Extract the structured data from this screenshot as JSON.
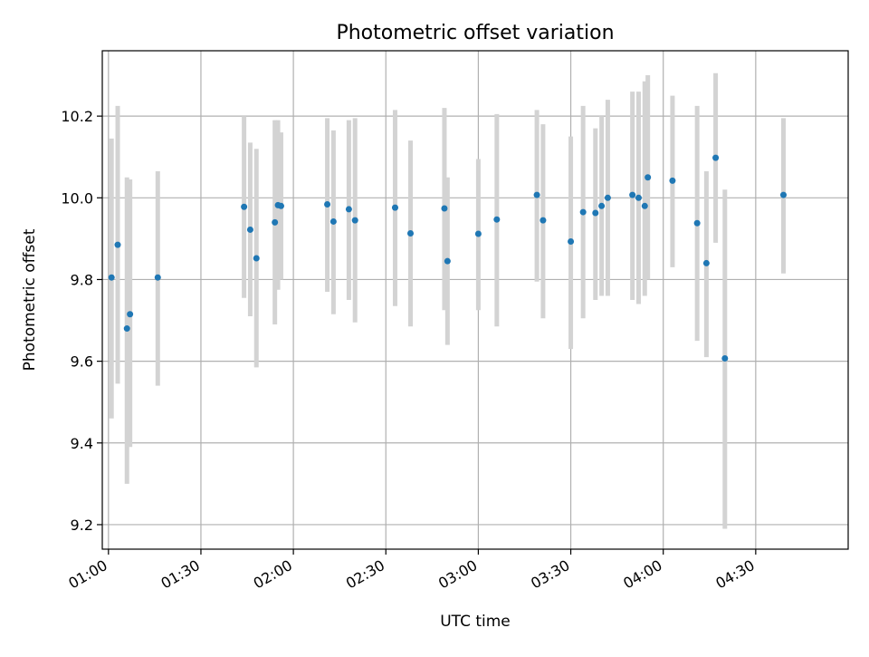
{
  "chart_data": {
    "type": "scatter",
    "title": "Photometric offset variation",
    "xlabel": "UTC time",
    "ylabel": "Photometric offset",
    "xlim": [
      "00:58",
      "05:00"
    ],
    "ylim": [
      9.14,
      10.36
    ],
    "grid": true,
    "x_ticks": [
      "01:00",
      "01:30",
      "02:00",
      "02:30",
      "03:00",
      "03:30",
      "04:00",
      "04:30"
    ],
    "y_ticks": [
      9.2,
      9.4,
      9.6,
      9.8,
      10.0,
      10.2
    ],
    "y_tick_labels": [
      "9.2",
      "9.4",
      "9.6",
      "9.8",
      "10.0",
      "10.2"
    ],
    "colors": {
      "point": "#1f77b4",
      "error_bar": "#d3d3d3",
      "grid": "#b0b0b0"
    },
    "series": [
      {
        "x": [
          "01:01",
          "01:03",
          "01:06",
          "01:07",
          "01:16",
          "01:44",
          "01:46",
          "01:48",
          "01:54",
          "01:55",
          "01:56",
          "02:11",
          "02:13",
          "02:18",
          "02:20",
          "02:33",
          "02:38",
          "02:49",
          "02:50",
          "03:00",
          "03:06",
          "03:19",
          "03:21",
          "03:30",
          "03:34",
          "03:38",
          "03:40",
          "03:42",
          "03:50",
          "03:52",
          "03:54",
          "03:55",
          "04:03",
          "04:11",
          "04:14",
          "04:17",
          "04:20",
          "04:39"
        ],
        "y": [
          9.805,
          9.885,
          9.68,
          9.715,
          9.805,
          9.978,
          9.922,
          9.852,
          9.94,
          9.982,
          9.98,
          9.984,
          9.942,
          9.972,
          9.945,
          9.976,
          9.913,
          9.974,
          9.845,
          9.912,
          9.947,
          10.007,
          9.945,
          9.893,
          9.965,
          9.963,
          9.98,
          10.0,
          10.007,
          10.0,
          9.98,
          10.05,
          10.042,
          9.938,
          9.84,
          10.098,
          9.607,
          10.007
        ],
        "err_low": [
          9.46,
          9.545,
          9.3,
          9.39,
          9.54,
          9.755,
          9.71,
          9.585,
          9.69,
          9.775,
          9.8,
          9.77,
          9.715,
          9.75,
          9.695,
          9.735,
          9.685,
          9.725,
          9.64,
          9.725,
          9.685,
          9.795,
          9.705,
          9.63,
          9.705,
          9.75,
          9.76,
          9.76,
          9.75,
          9.74,
          9.76,
          9.8,
          9.83,
          9.65,
          9.61,
          9.89,
          9.19,
          9.815
        ],
        "err_high": [
          10.145,
          10.225,
          10.05,
          10.045,
          10.065,
          10.2,
          10.135,
          10.12,
          10.19,
          10.19,
          10.16,
          10.195,
          10.165,
          10.19,
          10.195,
          10.215,
          10.14,
          10.22,
          10.05,
          10.095,
          10.205,
          10.215,
          10.18,
          10.15,
          10.225,
          10.17,
          10.2,
          10.24,
          10.26,
          10.26,
          10.285,
          10.3,
          10.25,
          10.225,
          10.065,
          10.305,
          10.02,
          10.195
        ]
      }
    ]
  }
}
